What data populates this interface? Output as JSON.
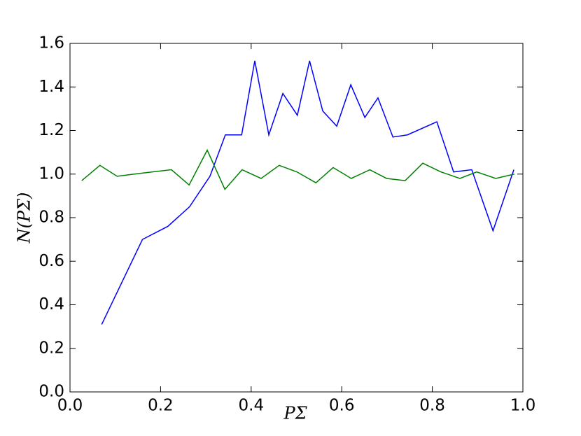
{
  "chart_data": {
    "type": "line",
    "xlabel": "PΣ",
    "ylabel": "N(PΣ)",
    "xlim": [
      0,
      1
    ],
    "ylim": [
      0,
      1.6
    ],
    "xticks": [
      {
        "value": 0,
        "label": "0.0"
      },
      0.2,
      0.4,
      0.6,
      0.8,
      {
        "value": 1,
        "label": "1.0"
      }
    ],
    "yticks": [
      {
        "value": 0,
        "label": "0.0"
      },
      0.2,
      0.4,
      0.6,
      0.8,
      {
        "value": 1,
        "label": "1.0"
      },
      1.2,
      1.4,
      1.6
    ],
    "grid": false,
    "series": [
      {
        "color": "#0000ff",
        "x": [
          0.07,
          0.16,
          0.216,
          0.264,
          0.309,
          0.343,
          0.379,
          0.408,
          0.439,
          0.47,
          0.502,
          0.529,
          0.558,
          0.589,
          0.62,
          0.651,
          0.68,
          0.713,
          0.745,
          0.81,
          0.847,
          0.887,
          0.934,
          0.98
        ],
        "values": [
          0.31,
          0.7,
          0.76,
          0.85,
          0.99,
          1.18,
          1.18,
          1.52,
          1.18,
          1.37,
          1.27,
          1.52,
          1.29,
          1.22,
          1.41,
          1.26,
          1.35,
          1.17,
          1.18,
          1.24,
          1.01,
          1.02,
          0.74,
          1.02
        ]
      },
      {
        "color": "#008000",
        "x": [
          0.026,
          0.066,
          0.104,
          0.142,
          0.182,
          0.224,
          0.263,
          0.303,
          0.342,
          0.38,
          0.422,
          0.462,
          0.501,
          0.543,
          0.581,
          0.621,
          0.662,
          0.699,
          0.74,
          0.779,
          0.819,
          0.861,
          0.898,
          0.94,
          0.981
        ],
        "values": [
          0.97,
          1.04,
          0.99,
          1.0,
          1.01,
          1.02,
          0.95,
          1.11,
          0.93,
          1.02,
          0.98,
          1.04,
          1.01,
          0.96,
          1.03,
          0.98,
          1.02,
          0.98,
          0.97,
          1.05,
          1.01,
          0.98,
          1.01,
          0.98,
          1.0
        ]
      }
    ]
  }
}
